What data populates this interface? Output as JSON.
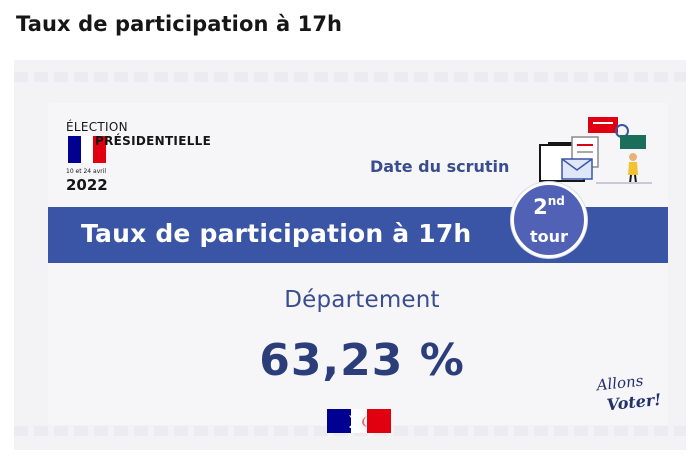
{
  "page": {
    "title": "Taux de participation à 17h"
  },
  "card": {
    "election": {
      "label_line1": "ÉLECTION",
      "label_line2": "PRÉSIDENTIELLE",
      "dates": "10 et 24 avril",
      "year": "2022"
    },
    "date_label": "Date du scrutin",
    "banner_title": "Taux de participation à 17h",
    "round": {
      "number": "2",
      "suffix": "nd",
      "word": "tour"
    },
    "scope_label": "Département",
    "rate_value": "63,23 %",
    "slogan": {
      "line1": "Allons",
      "line2": "Voter!"
    }
  },
  "colors": {
    "banner": "#3a55a6",
    "badge": "#5061b6",
    "accent_text": "#3a4d8f",
    "flag_blue": "#000091",
    "flag_red": "#e1000f"
  },
  "icons": {
    "flag": "french-flag-icon",
    "illustration": "ballot-box-illustration",
    "logo": "republique-francaise-logo"
  }
}
